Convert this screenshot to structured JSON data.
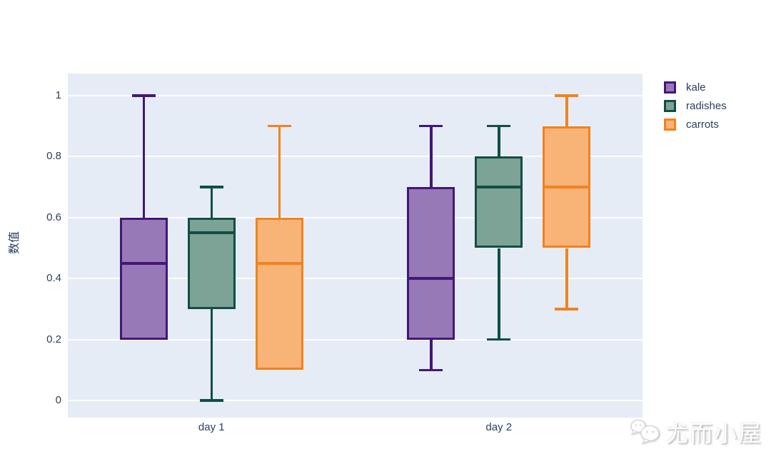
{
  "chart_data": {
    "type": "box",
    "title": "",
    "xlabel": "",
    "ylabel": "数值",
    "categories": [
      "day 1",
      "day 2"
    ],
    "ytick_labels": [
      "0",
      "0.2",
      "0.4",
      "0.6",
      "0.8",
      "1"
    ],
    "ytick_values": [
      0,
      0.2,
      0.4,
      0.6,
      0.8,
      1
    ],
    "ylim": [
      -0.06,
      1.07
    ],
    "grid": true,
    "legend_position": "top-right",
    "plot_bg_color": "#E5ECF6",
    "grid_color": "#FFFFFF",
    "text_color": "#2A3F5F",
    "series": [
      {
        "name": "kale",
        "line_color": "#431778",
        "fill_color": "#9679B6",
        "boxes": [
          {
            "category": "day 1",
            "min": 0.2,
            "q1": 0.2,
            "median": 0.45,
            "q3": 0.6,
            "max": 1.0
          },
          {
            "category": "day 2",
            "min": 0.1,
            "q1": 0.2,
            "median": 0.4,
            "q3": 0.7,
            "max": 0.9
          }
        ]
      },
      {
        "name": "radishes",
        "line_color": "#124E43",
        "fill_color": "#7DA296",
        "boxes": [
          {
            "category": "day 1",
            "min": 0.0,
            "q1": 0.3,
            "median": 0.55,
            "q3": 0.6,
            "max": 0.7
          },
          {
            "category": "day 2",
            "min": 0.2,
            "q1": 0.5,
            "median": 0.7,
            "q3": 0.8,
            "max": 0.9
          }
        ]
      },
      {
        "name": "carrots",
        "line_color": "#F0831F",
        "fill_color": "#F8B377",
        "boxes": [
          {
            "category": "day 1",
            "min": 0.1,
            "q1": 0.1,
            "median": 0.45,
            "q3": 0.6,
            "max": 0.9
          },
          {
            "category": "day 2",
            "min": 0.3,
            "q1": 0.5,
            "median": 0.7,
            "q3": 0.9,
            "max": 1.0
          }
        ]
      }
    ]
  },
  "watermark": {
    "text": "尤而小屋",
    "icon": "wechat-chat-bubbles-icon"
  }
}
